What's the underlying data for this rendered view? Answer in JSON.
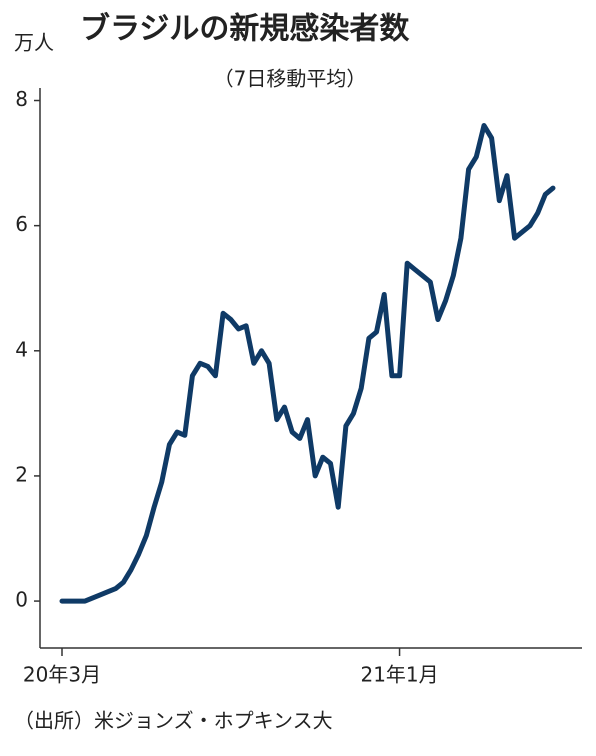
{
  "chart_data": {
    "type": "line",
    "title": "ブラジルの新規感染者数",
    "subtitle": "（7日移動平均）",
    "y_unit": "万人",
    "source": "（出所）米ジョンズ・ホプキンス大",
    "categories": [
      "20年3月",
      null,
      null,
      null,
      null,
      null,
      null,
      null,
      null,
      null,
      null,
      null,
      null,
      null,
      null,
      null,
      null,
      null,
      null,
      null,
      null,
      null,
      null,
      null,
      null,
      null,
      null,
      null,
      null,
      null,
      null,
      null,
      null,
      null,
      null,
      null,
      null,
      null,
      null,
      null,
      null,
      null,
      null,
      null,
      "21年1月",
      null,
      null,
      null,
      null,
      null,
      null,
      null,
      null,
      null,
      null,
      null,
      null,
      null,
      null,
      null,
      null,
      null,
      null,
      null,
      null
    ],
    "series": [
      {
        "name": "ブラジルの新規感染者数",
        "color": "#0f3a66",
        "values": [
          0,
          0,
          0,
          0,
          0.05,
          0.1,
          0.15,
          0.2,
          0.3,
          0.5,
          0.75,
          1.05,
          1.5,
          1.9,
          2.5,
          2.7,
          2.65,
          3.6,
          3.8,
          3.75,
          3.6,
          4.6,
          4.5,
          4.35,
          4.4,
          3.8,
          4.0,
          3.8,
          2.9,
          3.1,
          2.7,
          2.6,
          2.9,
          2.0,
          2.3,
          2.2,
          1.5,
          2.8,
          3.0,
          3.4,
          4.2,
          4.3,
          4.9,
          3.6,
          3.6,
          5.4,
          5.3,
          5.2,
          5.1,
          4.5,
          4.8,
          5.2,
          5.8,
          6.9,
          7.1,
          7.6,
          7.4,
          6.4,
          6.8,
          5.8,
          5.9,
          6.0,
          6.2,
          6.5,
          6.6
        ]
      }
    ],
    "ylim": [
      -0.75,
      8.2
    ],
    "yticks": [
      0,
      2,
      4,
      6,
      8
    ],
    "grid": false
  }
}
